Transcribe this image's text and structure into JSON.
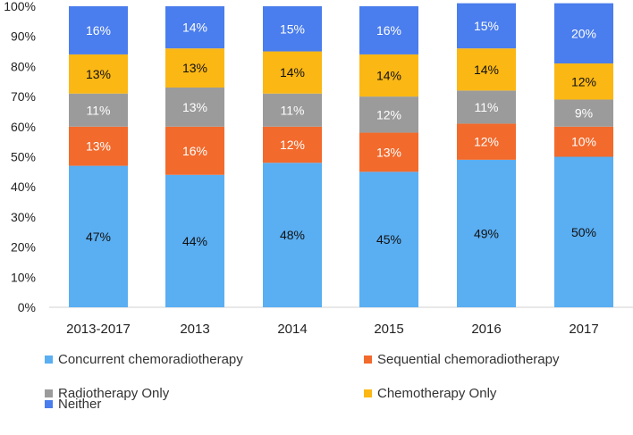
{
  "chart_data": {
    "type": "bar",
    "stacked": true,
    "categories": [
      "2013-2017",
      "2013",
      "2014",
      "2015",
      "2016",
      "2017"
    ],
    "series": [
      {
        "name": "Concurrent chemoradiotherapy",
        "color": "#5aaef2",
        "values": [
          47,
          44,
          48,
          45,
          49,
          50
        ],
        "labels": [
          "47%",
          "44%",
          "48%",
          "45%",
          "49%",
          "50%"
        ]
      },
      {
        "name": "Sequential chemoradiotherapy",
        "color": "#f26a2c",
        "values": [
          13,
          16,
          12,
          13,
          12,
          10
        ],
        "labels": [
          "13%",
          "16%",
          "12%",
          "13%",
          "12%",
          "10%"
        ]
      },
      {
        "name": "Radiotherapy Only",
        "color": "#9b9b9b",
        "values": [
          11,
          13,
          11,
          12,
          11,
          9
        ],
        "labels": [
          "11%",
          "13%",
          "11%",
          "12%",
          "11%",
          "9%"
        ]
      },
      {
        "name": "Chemotherapy Only",
        "color": "#fbb714",
        "values": [
          13,
          13,
          14,
          14,
          14,
          12
        ],
        "labels": [
          "13%",
          "13%",
          "14%",
          "14%",
          "14%",
          "12%"
        ]
      },
      {
        "name": "Neither",
        "color": "#4a7ded",
        "values": [
          16,
          14,
          15,
          16,
          15,
          20
        ],
        "labels": [
          "16%",
          "14%",
          "15%",
          "16%",
          "15%",
          "20%"
        ]
      }
    ],
    "ylim": [
      0,
      100
    ],
    "yticks": [
      "0%",
      "10%",
      "20%",
      "30%",
      "40%",
      "50%",
      "60%",
      "70%",
      "80%",
      "90%",
      "100%"
    ],
    "grid": false,
    "legend_position": "bottom",
    "title": "",
    "xlabel": "",
    "ylabel": ""
  }
}
